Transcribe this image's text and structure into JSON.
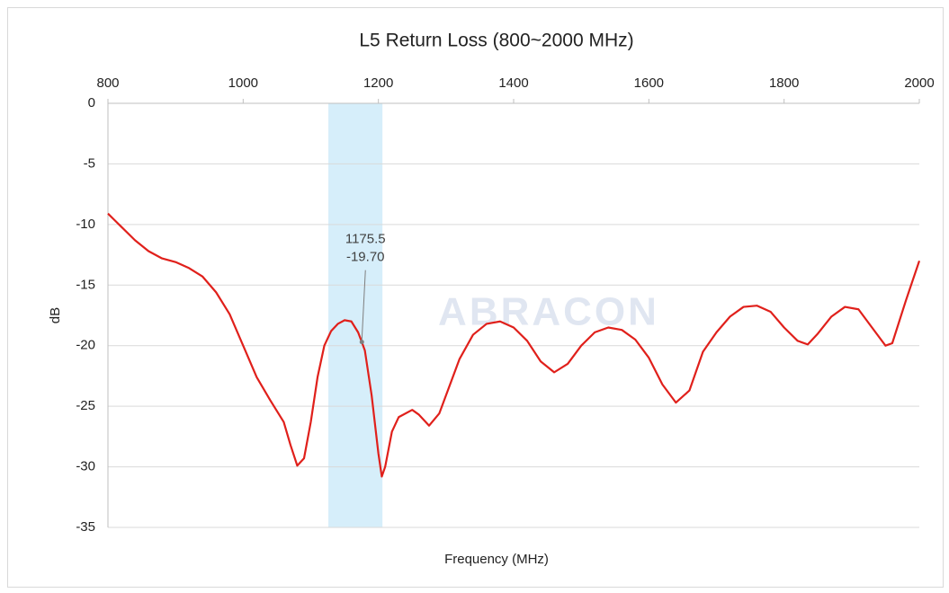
{
  "chart_data": {
    "type": "line",
    "title": "L5 Return Loss (800~2000 MHz)",
    "xlabel": "Frequency (MHz)",
    "ylabel": "dB",
    "watermark": "ABRACON",
    "xlim": [
      800,
      2000
    ],
    "xticks": [
      800,
      1000,
      1200,
      1400,
      1600,
      1800,
      2000
    ],
    "ylim": [
      -35,
      0
    ],
    "yticks": [
      0,
      -5,
      -10,
      -15,
      -20,
      -25,
      -30,
      -35
    ],
    "grid": true,
    "highlight_band": [
      1126,
      1206
    ],
    "highlight_color": "#d6eefa",
    "annotation": {
      "x": 1175.5,
      "y": -19.7,
      "text": [
        "1175.5",
        "-19.70"
      ]
    },
    "x": [
      800,
      820,
      840,
      860,
      880,
      900,
      920,
      940,
      960,
      980,
      1000,
      1020,
      1040,
      1060,
      1070,
      1080,
      1090,
      1100,
      1110,
      1120,
      1130,
      1140,
      1150,
      1160,
      1170,
      1175.5,
      1180,
      1190,
      1200,
      1205,
      1210,
      1220,
      1230,
      1250,
      1260,
      1275,
      1290,
      1300,
      1320,
      1340,
      1360,
      1380,
      1400,
      1420,
      1440,
      1460,
      1480,
      1500,
      1520,
      1540,
      1560,
      1580,
      1600,
      1620,
      1640,
      1660,
      1680,
      1700,
      1720,
      1740,
      1760,
      1780,
      1800,
      1820,
      1835,
      1850,
      1870,
      1890,
      1910,
      1930,
      1950,
      1960,
      1980,
      2000
    ],
    "series": [
      {
        "color": "#e0201b",
        "values": [
          -9.1,
          -10.2,
          -11.3,
          -12.2,
          -12.8,
          -13.1,
          -13.6,
          -14.3,
          -15.6,
          -17.4,
          -20.0,
          -22.6,
          -24.5,
          -26.3,
          -28.2,
          -29.9,
          -29.3,
          -26.3,
          -22.6,
          -20.0,
          -18.8,
          -18.2,
          -17.9,
          -18.0,
          -18.9,
          -19.7,
          -20.4,
          -24.1,
          -28.9,
          -30.8,
          -30.0,
          -27.1,
          -25.9,
          -25.3,
          -25.7,
          -26.6,
          -25.6,
          -24.1,
          -21.1,
          -19.1,
          -18.2,
          -18.0,
          -18.5,
          -19.6,
          -21.3,
          -22.2,
          -21.5,
          -20.0,
          -18.9,
          -18.5,
          -18.7,
          -19.5,
          -21.0,
          -23.2,
          -24.7,
          -23.7,
          -20.5,
          -18.9,
          -17.6,
          -16.8,
          -16.7,
          -17.2,
          -18.5,
          -19.6,
          -19.9,
          -19.0,
          -17.6,
          -16.8,
          -17.0,
          -18.5,
          -20.0,
          -19.8,
          -16.3,
          -13.0
        ]
      }
    ]
  }
}
